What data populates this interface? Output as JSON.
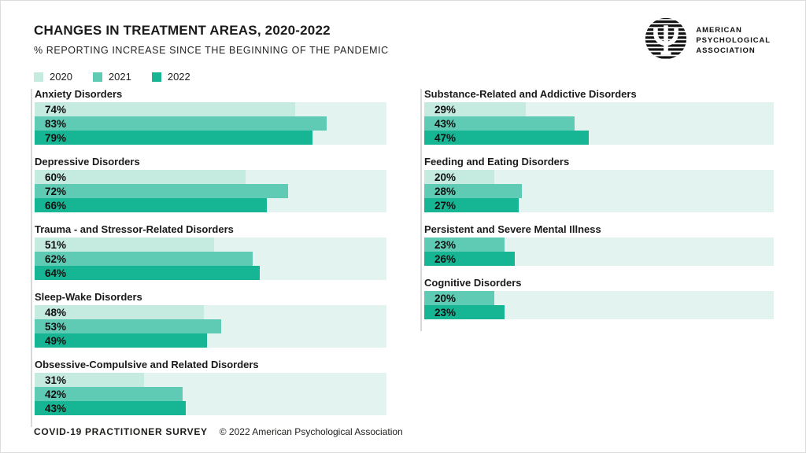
{
  "header": {
    "title": "CHANGES IN TREATMENT AREAS, 2020-2022",
    "subtitle": "% REPORTING INCREASE SINCE THE BEGINNING OF THE PANDEMIC"
  },
  "logo": {
    "line1": "AMERICAN",
    "line2": "PSYCHOLOGICAL",
    "line3": "ASSOCIATION",
    "psi_symbol": "Ψ"
  },
  "legend": [
    {
      "label": "2020",
      "color": "#c5eae0"
    },
    {
      "label": "2021",
      "color": "#5fcbb4"
    },
    {
      "label": "2022",
      "color": "#16b694"
    }
  ],
  "footer": {
    "survey": "COVID-19 PRACTITIONER SURVEY",
    "copyright": "© 2022 American Psychological Association"
  },
  "chart_data": {
    "type": "bar",
    "orientation": "horizontal",
    "title": "CHANGES IN TREATMENT AREAS, 2020-2022",
    "subtitle": "% REPORTING INCREASE SINCE THE BEGINNING OF THE PANDEMIC",
    "unit": "%",
    "xlim": [
      0,
      100
    ],
    "legend_position": "top-left",
    "series_years": [
      "2020",
      "2021",
      "2022"
    ],
    "colors": {
      "2020": "#c5eae0",
      "2021": "#5fcbb4",
      "2022": "#16b694",
      "track": "#e3f4f0",
      "text": "#1d1d1b"
    },
    "columns": [
      {
        "blocks": [
          {
            "title": "Anxiety Disorders",
            "bars": [
              {
                "year": "2020",
                "value": 74,
                "label": "74%"
              },
              {
                "year": "2021",
                "value": 83,
                "label": "83%"
              },
              {
                "year": "2022",
                "value": 79,
                "label": "79%"
              }
            ]
          },
          {
            "title": "Depressive Disorders",
            "bars": [
              {
                "year": "2020",
                "value": 60,
                "label": "60%"
              },
              {
                "year": "2021",
                "value": 72,
                "label": "72%"
              },
              {
                "year": "2022",
                "value": 66,
                "label": "66%"
              }
            ]
          },
          {
            "title": "Trauma - and Stressor-Related Disorders",
            "bars": [
              {
                "year": "2020",
                "value": 51,
                "label": "51%"
              },
              {
                "year": "2021",
                "value": 62,
                "label": "62%"
              },
              {
                "year": "2022",
                "value": 64,
                "label": "64%"
              }
            ]
          },
          {
            "title": "Sleep-Wake Disorders",
            "bars": [
              {
                "year": "2020",
                "value": 48,
                "label": "48%"
              },
              {
                "year": "2021",
                "value": 53,
                "label": "53%"
              },
              {
                "year": "2022",
                "value": 49,
                "label": "49%"
              }
            ]
          },
          {
            "title": "Obsessive-Compulsive and Related Disorders",
            "bars": [
              {
                "year": "2020",
                "value": 31,
                "label": "31%"
              },
              {
                "year": "2021",
                "value": 42,
                "label": "42%"
              },
              {
                "year": "2022",
                "value": 43,
                "label": "43%"
              }
            ]
          }
        ]
      },
      {
        "blocks": [
          {
            "title": "Substance-Related and Addictive Disorders",
            "bars": [
              {
                "year": "2020",
                "value": 29,
                "label": "29%"
              },
              {
                "year": "2021",
                "value": 43,
                "label": "43%"
              },
              {
                "year": "2022",
                "value": 47,
                "label": "47%"
              }
            ]
          },
          {
            "title": "Feeding and Eating Disorders",
            "bars": [
              {
                "year": "2020",
                "value": 20,
                "label": "20%"
              },
              {
                "year": "2021",
                "value": 28,
                "label": "28%"
              },
              {
                "year": "2022",
                "value": 27,
                "label": "27%"
              }
            ]
          },
          {
            "title": "Persistent and Severe Mental Illness",
            "bars": [
              {
                "year": "2021",
                "value": 23,
                "label": "23%"
              },
              {
                "year": "2022",
                "value": 26,
                "label": "26%"
              }
            ]
          },
          {
            "title": "Cognitive Disorders",
            "bars": [
              {
                "year": "2021",
                "value": 20,
                "label": "20%"
              },
              {
                "year": "2022",
                "value": 23,
                "label": "23%"
              }
            ]
          }
        ]
      }
    ]
  }
}
